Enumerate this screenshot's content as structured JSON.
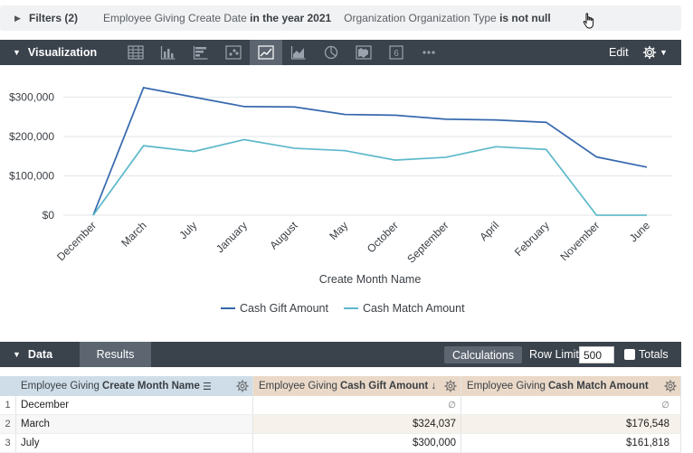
{
  "filters": {
    "label": "Filters (2)",
    "items": [
      {
        "prefix": "Employee Giving Create Date",
        "condition": "in the year 2021"
      },
      {
        "prefix": "Organization Organization Type",
        "condition": "is not null"
      }
    ]
  },
  "visualization": {
    "title": "Visualization",
    "edit_label": "Edit",
    "icons": [
      "table-icon",
      "column-chart-icon",
      "bar-chart-icon",
      "scatter-icon",
      "line-chart-icon",
      "area-chart-icon",
      "pie-chart-icon",
      "map-icon",
      "single-value-icon",
      "more-icon"
    ],
    "active_icon": "line-chart-icon"
  },
  "chart_data": {
    "type": "line",
    "xlabel": "Create Month Name",
    "ylabel": "",
    "ylim": [
      0,
      340000
    ],
    "yticks": [
      0,
      100000,
      200000,
      300000
    ],
    "ytick_labels": [
      "$0",
      "$100,000",
      "$200,000",
      "$300,000"
    ],
    "categories": [
      "December",
      "March",
      "July",
      "January",
      "August",
      "May",
      "October",
      "September",
      "April",
      "February",
      "November",
      "June"
    ],
    "legend_position": "bottom",
    "grid": true,
    "series": [
      {
        "name": "Cash Gift Amount",
        "color": "#3467ad",
        "values": [
          0,
          324037,
          300000,
          276000,
          275000,
          256000,
          254000,
          244000,
          242000,
          236000,
          148000,
          122000
        ]
      },
      {
        "name": "Cash Match Amount",
        "color": "#5bb8c9",
        "values": [
          0,
          176548,
          161818,
          192000,
          170000,
          164000,
          140000,
          147000,
          174000,
          167000,
          0,
          0
        ]
      }
    ]
  },
  "data_panel": {
    "title": "Data",
    "results_tab": "Results",
    "calculations_label": "Calculations",
    "row_limit_label": "Row Limit",
    "row_limit_value": "500",
    "totals_label": "Totals"
  },
  "table": {
    "columns": [
      {
        "prefix": "Employee Giving",
        "name": "Create Month Name"
      },
      {
        "prefix": "Employee Giving",
        "name": "Cash Gift Amount ↓"
      },
      {
        "prefix": "Employee Giving",
        "name": "Cash Match Amount"
      }
    ],
    "rows": [
      {
        "index": "1",
        "month": "December",
        "gift": "∅",
        "match": "∅"
      },
      {
        "index": "2",
        "month": "March",
        "gift": "$324,037",
        "match": "$176,548"
      },
      {
        "index": "3",
        "month": "July",
        "gift": "$300,000",
        "match": "$161,818"
      }
    ]
  },
  "colors": {
    "toolbar_bg": "#3a424c",
    "dimension_header": "#cfdde8",
    "measure_header": "#ead9c8"
  }
}
